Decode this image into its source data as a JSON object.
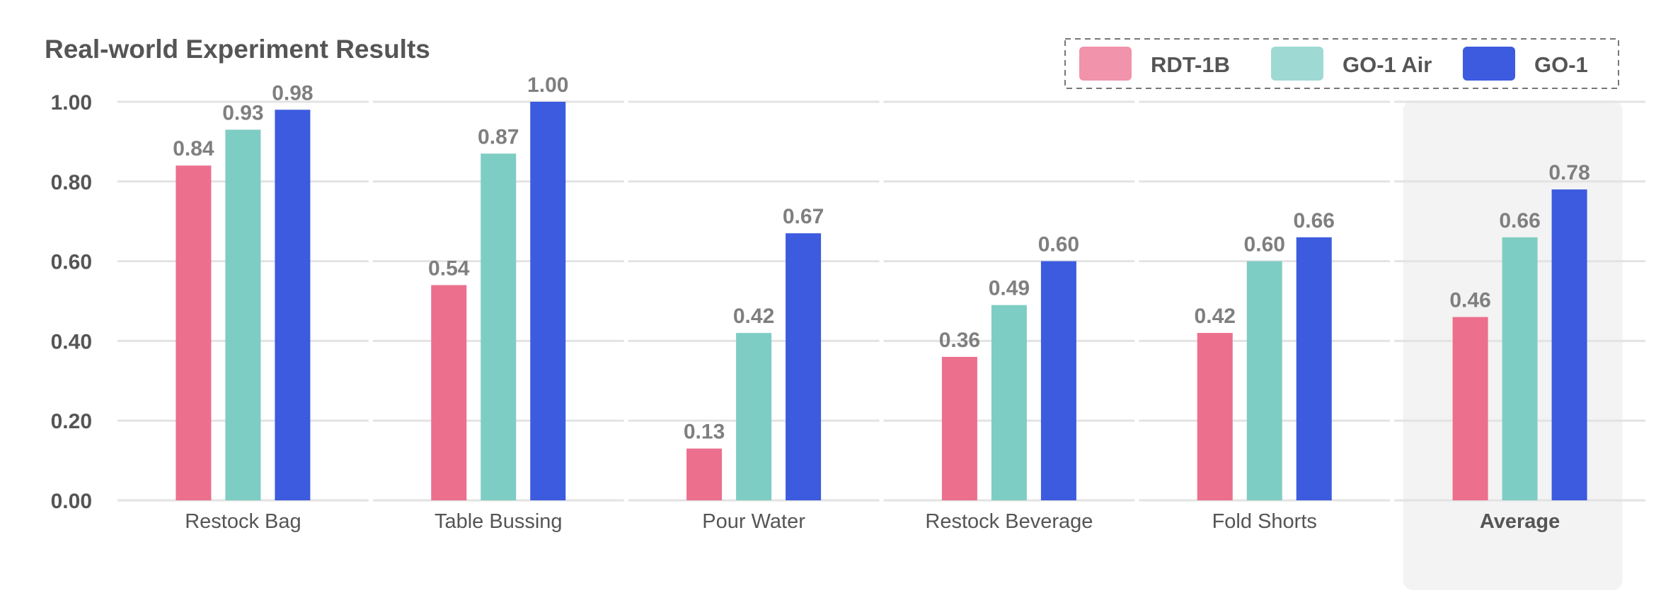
{
  "chart_data": {
    "type": "bar",
    "title": "Real-world Experiment Results",
    "categories": [
      "Restock Bag",
      "Table Bussing",
      "Pour Water",
      "Restock Beverage",
      "Fold Shorts",
      "Average"
    ],
    "highlighted_category": "Average",
    "series": [
      {
        "name": "RDT-1B",
        "color": "#ec6f8d",
        "values": [
          0.84,
          0.54,
          0.13,
          0.36,
          0.42,
          0.46
        ]
      },
      {
        "name": "GO-1 Air",
        "color": "#7ecdc4",
        "values": [
          0.93,
          0.87,
          0.42,
          0.49,
          0.6,
          0.66
        ]
      },
      {
        "name": "GO-1",
        "color": "#3c5bdf",
        "values": [
          0.98,
          1.0,
          0.67,
          0.6,
          0.66,
          0.78
        ]
      }
    ],
    "yticks": [
      "0.00",
      "0.20",
      "0.40",
      "0.60",
      "0.80",
      "1.00"
    ],
    "ylim": [
      0,
      1.0
    ],
    "xlabel": "",
    "ylabel": "",
    "grid": true,
    "legend_position": "top-right"
  }
}
